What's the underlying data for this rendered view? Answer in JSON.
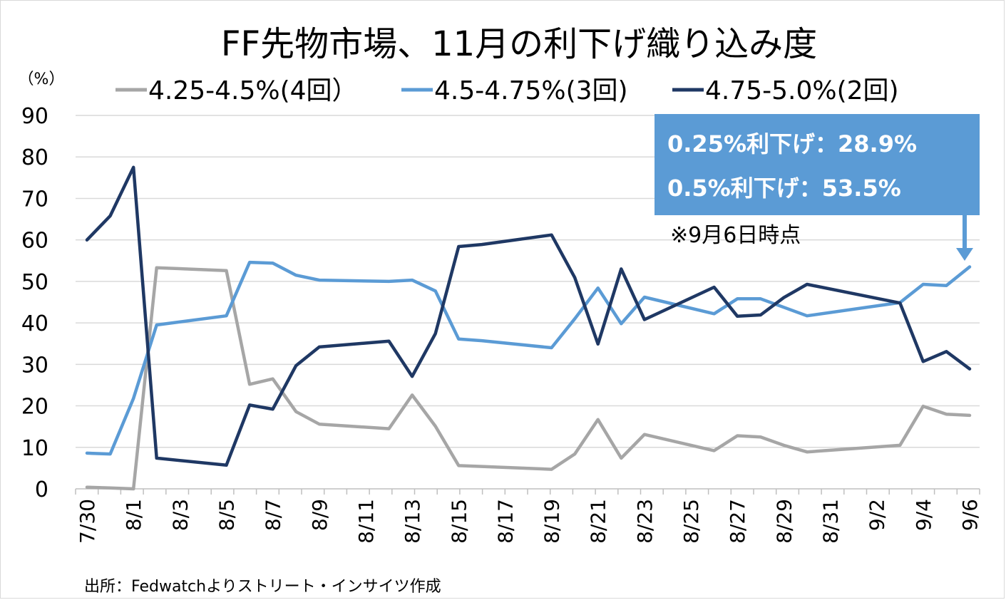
{
  "chart_data": {
    "type": "line",
    "title": "FF先物市場、11月の利下げ織り込み度",
    "y_unit_label": "（%）",
    "ylim": [
      0,
      90
    ],
    "y_ticks": [
      0,
      10,
      20,
      30,
      40,
      50,
      60,
      70,
      80,
      90
    ],
    "x_range": [
      "2024-07-30",
      "2024-09-06"
    ],
    "x_tick_labels": [
      {
        "date": "2024-07-30",
        "label": "7/30"
      },
      {
        "date": "2024-08-01",
        "label": "8/1"
      },
      {
        "date": "2024-08-03",
        "label": "8/3"
      },
      {
        "date": "2024-08-05",
        "label": "8/5"
      },
      {
        "date": "2024-08-07",
        "label": "8/7"
      },
      {
        "date": "2024-08-09",
        "label": "8/9"
      },
      {
        "date": "2024-08-11",
        "label": "8/11"
      },
      {
        "date": "2024-08-13",
        "label": "8/13"
      },
      {
        "date": "2024-08-15",
        "label": "8/15"
      },
      {
        "date": "2024-08-17",
        "label": "8/17"
      },
      {
        "date": "2024-08-19",
        "label": "8/19"
      },
      {
        "date": "2024-08-21",
        "label": "8/21"
      },
      {
        "date": "2024-08-23",
        "label": "8/23"
      },
      {
        "date": "2024-08-25",
        "label": "8/25"
      },
      {
        "date": "2024-08-27",
        "label": "8/27"
      },
      {
        "date": "2024-08-29",
        "label": "8/29"
      },
      {
        "date": "2024-08-31",
        "label": "8/31"
      },
      {
        "date": "2024-09-02",
        "label": "9/2"
      },
      {
        "date": "2024-09-04",
        "label": "9/4"
      },
      {
        "date": "2024-09-06",
        "label": "9/6"
      }
    ],
    "grid": true,
    "legend_position": "top",
    "series": [
      {
        "name": "4.25-4.5%(4回）",
        "color": "#a6a6a6",
        "points": [
          [
            "2024-07-30",
            0.4
          ],
          [
            "2024-07-31",
            0.2
          ],
          [
            "2024-08-01",
            0.0
          ],
          [
            "2024-08-02",
            53.3
          ],
          [
            "2024-08-05",
            52.6
          ],
          [
            "2024-08-06",
            25.2
          ],
          [
            "2024-08-07",
            26.5
          ],
          [
            "2024-08-08",
            18.6
          ],
          [
            "2024-08-09",
            15.6
          ],
          [
            "2024-08-12",
            14.5
          ],
          [
            "2024-08-13",
            22.6
          ],
          [
            "2024-08-14",
            15.1
          ],
          [
            "2024-08-15",
            5.6
          ],
          [
            "2024-08-16",
            5.4
          ],
          [
            "2024-08-19",
            4.7
          ],
          [
            "2024-08-20",
            8.4
          ],
          [
            "2024-08-21",
            16.7
          ],
          [
            "2024-08-22",
            7.4
          ],
          [
            "2024-08-23",
            13.1
          ],
          [
            "2024-08-26",
            9.2
          ],
          [
            "2024-08-27",
            12.8
          ],
          [
            "2024-08-28",
            12.5
          ],
          [
            "2024-08-29",
            10.5
          ],
          [
            "2024-08-30",
            8.9
          ],
          [
            "2024-09-03",
            10.5
          ],
          [
            "2024-09-04",
            19.9
          ],
          [
            "2024-09-05",
            18.0
          ],
          [
            "2024-09-06",
            17.7
          ]
        ]
      },
      {
        "name": "4.5-4.75%(3回)",
        "color": "#5b9bd5",
        "points": [
          [
            "2024-07-30",
            8.6
          ],
          [
            "2024-07-31",
            8.4
          ],
          [
            "2024-08-01",
            21.8
          ],
          [
            "2024-08-02",
            39.5
          ],
          [
            "2024-08-05",
            41.7
          ],
          [
            "2024-08-06",
            54.6
          ],
          [
            "2024-08-07",
            54.4
          ],
          [
            "2024-08-08",
            51.5
          ],
          [
            "2024-08-09",
            50.3
          ],
          [
            "2024-08-12",
            50.0
          ],
          [
            "2024-08-13",
            50.3
          ],
          [
            "2024-08-14",
            47.7
          ],
          [
            "2024-08-15",
            36.1
          ],
          [
            "2024-08-16",
            35.7
          ],
          [
            "2024-08-19",
            34.0
          ],
          [
            "2024-08-20",
            41.0
          ],
          [
            "2024-08-21",
            48.4
          ],
          [
            "2024-08-22",
            39.8
          ],
          [
            "2024-08-23",
            46.2
          ],
          [
            "2024-08-26",
            42.2
          ],
          [
            "2024-08-27",
            45.8
          ],
          [
            "2024-08-28",
            45.8
          ],
          [
            "2024-08-30",
            41.7
          ],
          [
            "2024-09-03",
            44.9
          ],
          [
            "2024-09-04",
            49.3
          ],
          [
            "2024-09-05",
            49.0
          ],
          [
            "2024-09-06",
            53.5
          ]
        ]
      },
      {
        "name": "4.75-5.0%(2回)",
        "color": "#1f3864",
        "points": [
          [
            "2024-07-30",
            60.0
          ],
          [
            "2024-07-31",
            65.8
          ],
          [
            "2024-08-01",
            77.5
          ],
          [
            "2024-08-02",
            7.4
          ],
          [
            "2024-08-05",
            5.7
          ],
          [
            "2024-08-06",
            20.2
          ],
          [
            "2024-08-07",
            19.2
          ],
          [
            "2024-08-08",
            29.7
          ],
          [
            "2024-08-09",
            34.2
          ],
          [
            "2024-08-12",
            35.6
          ],
          [
            "2024-08-13",
            27.1
          ],
          [
            "2024-08-14",
            37.4
          ],
          [
            "2024-08-15",
            58.4
          ],
          [
            "2024-08-16",
            58.9
          ],
          [
            "2024-08-19",
            61.2
          ],
          [
            "2024-08-20",
            50.9
          ],
          [
            "2024-08-21",
            34.9
          ],
          [
            "2024-08-22",
            53.0
          ],
          [
            "2024-08-23",
            40.8
          ],
          [
            "2024-08-26",
            48.6
          ],
          [
            "2024-08-27",
            41.6
          ],
          [
            "2024-08-28",
            41.9
          ],
          [
            "2024-08-29",
            46.1
          ],
          [
            "2024-08-30",
            49.3
          ],
          [
            "2024-09-03",
            44.8
          ],
          [
            "2024-09-04",
            30.7
          ],
          [
            "2024-09-05",
            33.1
          ],
          [
            "2024-09-06",
            28.9
          ]
        ]
      }
    ],
    "annotation": {
      "lines": [
        "0.25%利下げ：28.9%",
        "0.5%利下げ：53.5%"
      ],
      "note": "※9月6日時点",
      "box_color": "#5b9bd5",
      "target": {
        "date": "2024-09-06",
        "value": 53.5
      }
    },
    "source": "出所：Fedwatchよりストリート・インサイツ作成"
  }
}
